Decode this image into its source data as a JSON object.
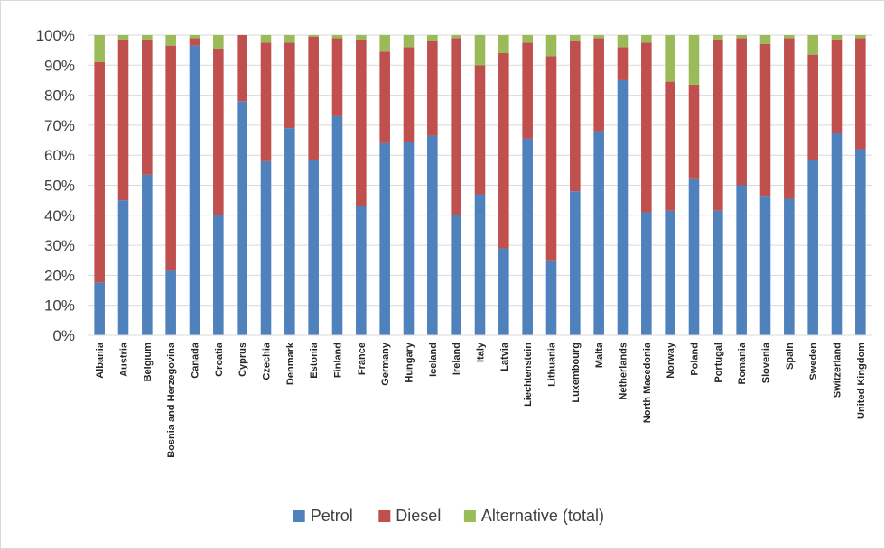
{
  "chart_data": {
    "type": "bar",
    "stacked": true,
    "title": "",
    "xlabel": "",
    "ylabel": "",
    "ylim": [
      0,
      100
    ],
    "yticks": [
      "0%",
      "10%",
      "20%",
      "30%",
      "40%",
      "50%",
      "60%",
      "70%",
      "80%",
      "90%",
      "100%"
    ],
    "grid": "horizontal",
    "legend_position": "bottom",
    "categories": [
      "Albania",
      "Austria",
      "Belgium",
      "Bosnia and Herzegovina",
      "Canada",
      "Croatia",
      "Cyprus",
      "Czechia",
      "Denmark",
      "Estonia",
      "Finland",
      "France",
      "Germany",
      "Hungary",
      "Iceland",
      "Ireland",
      "Italy",
      "Latvia",
      "Liechtenstein",
      "Lithuania",
      "Luxembourg",
      "Malta",
      "Netherlands",
      "North Macedonia",
      "Norway",
      "Poland",
      "Portugal",
      "Romania",
      "Slovenia",
      "Spain",
      "Sweden",
      "Switzerland",
      "United Kingdom"
    ],
    "series": [
      {
        "name": "Petrol",
        "color": "#4f81bd",
        "values": [
          17.5,
          45,
          53.5,
          21.5,
          96.5,
          40,
          78,
          58,
          69,
          58.5,
          73,
          43,
          64,
          64.5,
          66.5,
          40,
          47,
          29,
          65.5,
          25,
          48,
          68,
          85,
          41,
          41.5,
          52,
          41.5,
          50,
          46.5,
          45.5,
          58.5,
          67.5,
          62
        ]
      },
      {
        "name": "Diesel",
        "color": "#c0504d",
        "values": [
          73.5,
          53.5,
          45,
          75,
          2.5,
          55.5,
          22,
          39.5,
          28.5,
          41,
          26,
          55.5,
          30.5,
          31.5,
          31.5,
          59,
          43,
          65,
          32,
          68,
          50,
          31,
          11,
          56.5,
          43,
          31.5,
          57,
          49,
          50.5,
          53.5,
          35,
          31,
          37
        ]
      },
      {
        "name": "Alternative (total)",
        "color": "#9bbb59",
        "values": [
          9,
          1.5,
          1.5,
          3.5,
          1,
          4.5,
          0,
          2.5,
          2.5,
          0.5,
          1,
          1.5,
          5.5,
          4,
          2,
          1,
          10,
          6,
          2.5,
          7,
          2,
          1,
          4,
          2.5,
          15.5,
          16.5,
          1.5,
          1,
          3,
          1,
          6.5,
          1.5,
          1
        ]
      }
    ]
  }
}
